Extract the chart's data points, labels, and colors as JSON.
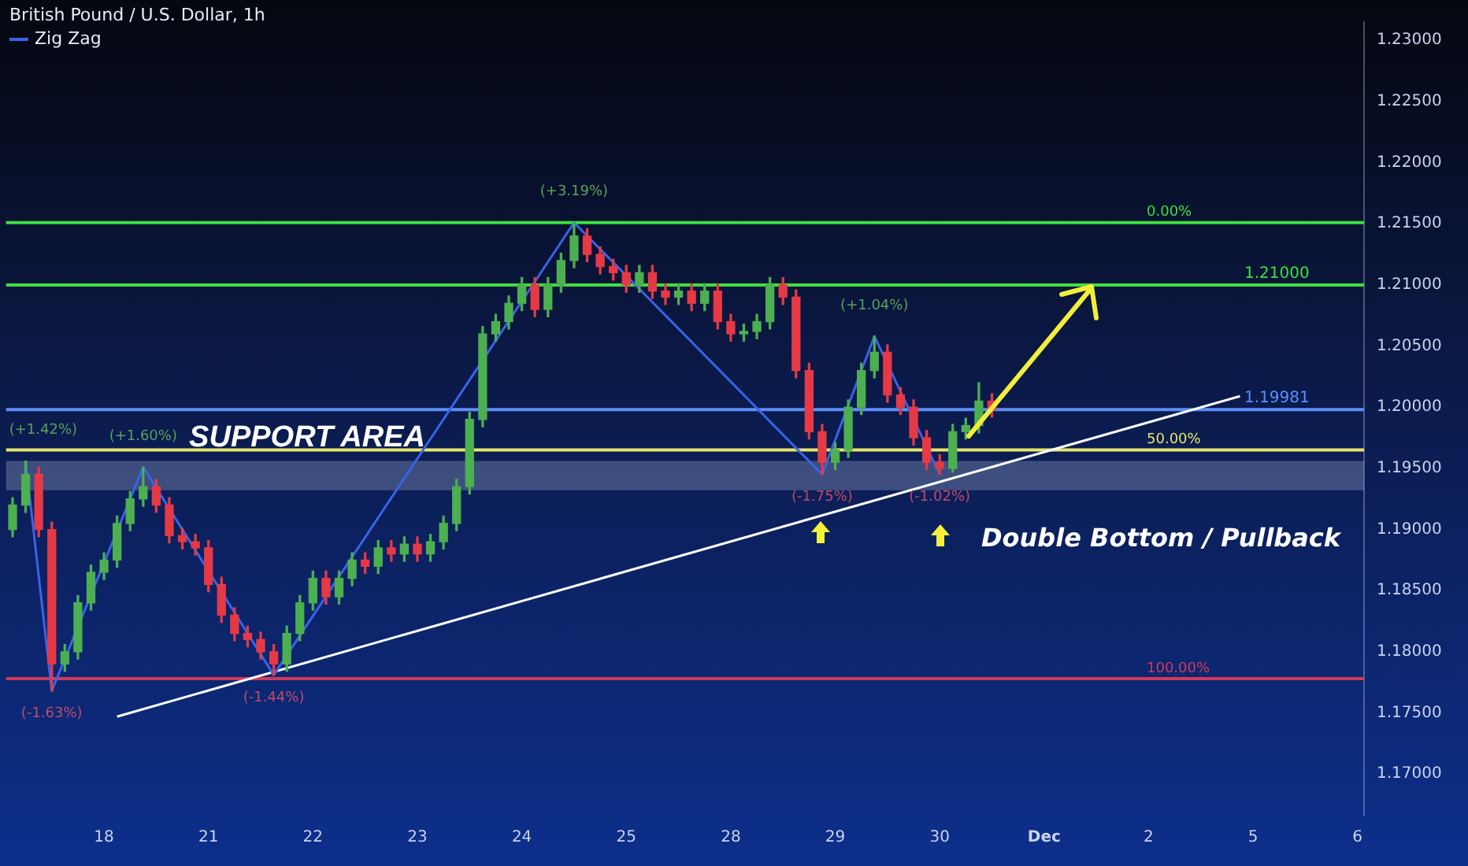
{
  "chart_data": {
    "type": "candlestick",
    "title": "British Pound / U.S. Dollar, 1h",
    "categories": [
      null,
      null,
      null,
      null,
      null,
      null,
      null,
      "18",
      null,
      null,
      null,
      null,
      null,
      null,
      null,
      "21",
      null,
      null,
      null,
      null,
      null,
      null,
      null,
      "22",
      null,
      null,
      null,
      null,
      null,
      null,
      null,
      "23",
      null,
      null,
      null,
      null,
      null,
      null,
      null,
      "24",
      null,
      null,
      null,
      null,
      null,
      null,
      null,
      "25",
      null,
      null,
      null,
      null,
      null,
      null,
      null,
      "28",
      null,
      null,
      null,
      null,
      null,
      null,
      null,
      "29",
      null,
      null,
      null,
      null,
      null,
      null,
      null,
      "30",
      null,
      null,
      null,
      null,
      null,
      null,
      null,
      "Dec",
      null,
      null,
      null,
      null,
      null,
      null,
      null,
      "2",
      null,
      null,
      null,
      null,
      null,
      null,
      null,
      "5",
      null,
      null,
      null,
      null,
      null,
      null,
      null,
      "6"
    ],
    "ohlc": [
      [
        1.19,
        1.1926,
        1.1894,
        1.192
      ],
      [
        1.192,
        1.1956,
        1.1914,
        1.1945
      ],
      [
        1.1945,
        1.1951,
        1.1894,
        1.19
      ],
      [
        1.19,
        1.1906,
        1.1768,
        1.179
      ],
      [
        1.179,
        1.1806,
        1.1784,
        1.18
      ],
      [
        1.18,
        1.1846,
        1.1794,
        1.184
      ],
      [
        1.184,
        1.1871,
        1.1834,
        1.1865
      ],
      [
        1.1865,
        1.1881,
        1.1859,
        1.1875
      ],
      [
        1.1875,
        1.1911,
        1.1869,
        1.1905
      ],
      [
        1.1905,
        1.1931,
        1.1899,
        1.1925
      ],
      [
        1.1925,
        1.1951,
        1.1919,
        1.1935
      ],
      [
        1.1935,
        1.1941,
        1.1914,
        1.192
      ],
      [
        1.192,
        1.1926,
        1.1889,
        1.1895
      ],
      [
        1.1895,
        1.1901,
        1.1884,
        1.189
      ],
      [
        1.189,
        1.1896,
        1.1879,
        1.1885
      ],
      [
        1.1885,
        1.1891,
        1.1849,
        1.1855
      ],
      [
        1.1855,
        1.1861,
        1.1824,
        1.183
      ],
      [
        1.183,
        1.1836,
        1.1809,
        1.1815
      ],
      [
        1.1815,
        1.1821,
        1.1804,
        1.181
      ],
      [
        1.181,
        1.1816,
        1.1794,
        1.18
      ],
      [
        1.18,
        1.1806,
        1.1781,
        1.179
      ],
      [
        1.179,
        1.1821,
        1.1784,
        1.1815
      ],
      [
        1.1815,
        1.1846,
        1.1809,
        1.184
      ],
      [
        1.184,
        1.1866,
        1.1834,
        1.186
      ],
      [
        1.186,
        1.1866,
        1.1839,
        1.1845
      ],
      [
        1.1845,
        1.1866,
        1.1839,
        1.186
      ],
      [
        1.186,
        1.1881,
        1.1854,
        1.1875
      ],
      [
        1.1875,
        1.1881,
        1.1864,
        1.187
      ],
      [
        1.187,
        1.1891,
        1.1864,
        1.1885
      ],
      [
        1.1885,
        1.1891,
        1.1874,
        1.188
      ],
      [
        1.188,
        1.1894,
        1.1874,
        1.1888
      ],
      [
        1.1888,
        1.1894,
        1.1874,
        1.188
      ],
      [
        1.188,
        1.1896,
        1.1874,
        1.189
      ],
      [
        1.189,
        1.1911,
        1.1884,
        1.1905
      ],
      [
        1.1905,
        1.1941,
        1.1899,
        1.1935
      ],
      [
        1.1935,
        1.1996,
        1.1929,
        1.199
      ],
      [
        1.199,
        1.2066,
        1.1984,
        1.206
      ],
      [
        1.206,
        1.2076,
        1.2054,
        1.207
      ],
      [
        1.207,
        1.2091,
        1.2064,
        1.2085
      ],
      [
        1.2085,
        1.2106,
        1.2079,
        1.21
      ],
      [
        1.21,
        1.2106,
        1.2074,
        1.208
      ],
      [
        1.208,
        1.2106,
        1.2074,
        1.21
      ],
      [
        1.21,
        1.2126,
        1.2094,
        1.212
      ],
      [
        1.212,
        1.2151,
        1.2114,
        1.214
      ],
      [
        1.214,
        1.2146,
        1.2119,
        1.2125
      ],
      [
        1.2125,
        1.2131,
        1.2109,
        1.2115
      ],
      [
        1.2115,
        1.2121,
        1.2104,
        1.211
      ],
      [
        1.211,
        1.2116,
        1.2094,
        1.21
      ],
      [
        1.21,
        1.2116,
        1.2094,
        1.211
      ],
      [
        1.211,
        1.2116,
        1.2089,
        1.2095
      ],
      [
        1.2095,
        1.2101,
        1.2084,
        1.209
      ],
      [
        1.209,
        1.2101,
        1.2084,
        1.2095
      ],
      [
        1.2095,
        1.2101,
        1.2079,
        1.2085
      ],
      [
        1.2085,
        1.2101,
        1.2079,
        1.2095
      ],
      [
        1.2095,
        1.2101,
        1.2064,
        1.207
      ],
      [
        1.207,
        1.2076,
        1.2054,
        1.206
      ],
      [
        1.206,
        1.2068,
        1.2054,
        1.2062
      ],
      [
        1.2062,
        1.2076,
        1.2056,
        1.207
      ],
      [
        1.207,
        1.2106,
        1.2064,
        1.21
      ],
      [
        1.21,
        1.2106,
        1.2084,
        1.209
      ],
      [
        1.209,
        1.2096,
        1.2024,
        1.203
      ],
      [
        1.203,
        1.2036,
        1.1974,
        1.198
      ],
      [
        1.198,
        1.1986,
        1.1945,
        1.1955
      ],
      [
        1.1955,
        1.1971,
        1.1949,
        1.1965
      ],
      [
        1.1965,
        1.2006,
        1.1959,
        1.2
      ],
      [
        1.2,
        1.2036,
        1.1994,
        1.203
      ],
      [
        1.203,
        1.2058,
        1.2024,
        1.2045
      ],
      [
        1.2045,
        1.2051,
        1.2004,
        1.201
      ],
      [
        1.201,
        1.2016,
        1.1994,
        1.2
      ],
      [
        1.2,
        1.2006,
        1.1969,
        1.1975
      ],
      [
        1.1975,
        1.1981,
        1.1949,
        1.1955
      ],
      [
        1.1955,
        1.1961,
        1.1945,
        1.195
      ],
      [
        1.195,
        1.1986,
        1.1947,
        1.198
      ],
      [
        1.198,
        1.1991,
        1.1974,
        1.1985
      ],
      [
        1.1985,
        1.202,
        1.1979,
        1.2005
      ],
      [
        1.2005,
        1.2011,
        1.1992,
        1.1998
      ],
      null,
      null,
      null,
      null,
      null,
      null,
      null,
      null,
      null,
      null,
      null,
      null,
      null,
      null,
      null,
      null,
      null,
      null,
      null,
      null,
      null,
      null,
      null,
      null,
      null,
      null,
      null,
      null
    ],
    "series": [
      {
        "type": "line",
        "name": "Zig Zag",
        "color": "#3a63e8",
        "values": [
          null,
          1.1956,
          null,
          1.1768,
          null,
          null,
          null,
          null,
          null,
          null,
          1.1951,
          null,
          null,
          null,
          null,
          null,
          null,
          null,
          null,
          null,
          1.1781,
          null,
          null,
          null,
          null,
          null,
          null,
          null,
          null,
          null,
          null,
          null,
          null,
          null,
          null,
          null,
          null,
          null,
          null,
          null,
          null,
          null,
          null,
          1.2151,
          null,
          null,
          null,
          null,
          null,
          null,
          null,
          null,
          null,
          null,
          null,
          null,
          null,
          null,
          null,
          null,
          null,
          null,
          1.1945,
          null,
          null,
          null,
          1.2058,
          null,
          null,
          null,
          null,
          1.1945,
          null,
          null,
          null,
          null,
          null,
          null,
          null,
          null,
          null,
          null,
          null,
          null,
          null,
          null,
          null,
          null,
          null,
          null,
          null,
          null,
          null,
          null,
          null,
          null,
          null,
          null,
          null,
          null,
          null,
          null,
          null,
          null
        ]
      },
      {
        "type": "line",
        "color": "#ffffff",
        "values": [
          null,
          null,
          null,
          null,
          null,
          null,
          null,
          null,
          1.1747,
          null,
          null,
          null,
          null,
          null,
          null,
          null,
          null,
          null,
          null,
          null,
          null,
          null,
          null,
          null,
          null,
          null,
          null,
          null,
          null,
          null,
          null,
          null,
          null,
          null,
          null,
          null,
          null,
          null,
          null,
          null,
          null,
          null,
          null,
          null,
          null,
          null,
          null,
          null,
          null,
          null,
          null,
          null,
          null,
          null,
          null,
          null,
          null,
          null,
          null,
          null,
          null,
          null,
          null,
          null,
          null,
          null,
          null,
          null,
          null,
          null,
          null,
          null,
          null,
          null,
          null,
          null,
          null,
          null,
          null,
          null,
          null,
          null,
          null,
          null,
          null,
          null,
          null,
          null,
          null,
          null,
          null,
          null,
          null,
          null,
          1.2009,
          null,
          null,
          null,
          null,
          null,
          null,
          null,
          null,
          null
        ]
      }
    ],
    "ylim": [
      1.1666,
      1.2315
    ],
    "yticks": [
      {
        "value": 1.17,
        "label": "1.17000"
      },
      {
        "value": 1.175,
        "label": "1.17500"
      },
      {
        "value": 1.18,
        "label": "1.18000"
      },
      {
        "value": 1.185,
        "label": "1.18500"
      },
      {
        "value": 1.19,
        "label": "1.19000"
      },
      {
        "value": 1.195,
        "label": "1.19500"
      },
      {
        "value": 1.2,
        "label": "1.20000"
      },
      {
        "value": 1.205,
        "label": "1.20500"
      },
      {
        "value": 1.21,
        "label": "1.21000"
      },
      {
        "value": 1.215,
        "label": "1.21500"
      },
      {
        "value": 1.22,
        "label": "1.22000"
      },
      {
        "value": 1.225,
        "label": "1.22500"
      },
      {
        "value": 1.23,
        "label": "1.23000"
      }
    ],
    "ref_lines": [
      {
        "axis": "y",
        "value": 1.2151,
        "color": "#3de03d"
      },
      {
        "axis": "y",
        "value": 1.21,
        "label": "1.21000",
        "color": "#3de03d"
      },
      {
        "axis": "y",
        "value": 1.19981,
        "label": "1.19981",
        "color": "#5b8ff9"
      },
      {
        "axis": "y",
        "value": 1.1965,
        "color": "#e6e66a"
      },
      {
        "axis": "y",
        "value": 1.1778,
        "color": "#d03a5a"
      }
    ],
    "bands": [
      {
        "axis": "y",
        "from": 1.1932,
        "to": 1.1956,
        "label": "SUPPORT AREA",
        "color": "#9aa8cc"
      }
    ],
    "annotations": [
      "(+1.42%)",
      "(-1.63%)",
      "(+1.60%)",
      "(-1.44%)",
      "(+3.19%)",
      "(-1.75%)",
      "(+1.04%)",
      "(-1.02%)",
      "Double Bottom / Pullback",
      {
        "text": "0.00%",
        "y": 1.2151
      },
      {
        "text": "50.00%",
        "y": 1.1965
      },
      {
        "text": "100.00%",
        "y": 1.1778
      }
    ],
    "legend": "top left"
  }
}
